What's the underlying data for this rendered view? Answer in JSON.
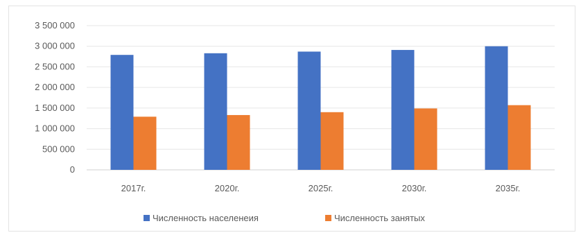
{
  "chart_data": {
    "type": "bar",
    "title": "",
    "xlabel": "",
    "ylabel": "",
    "categories": [
      "2017г.",
      "2020г.",
      "2025г.",
      "2030г.",
      "2035г."
    ],
    "series": [
      {
        "name": "Численность населенеия",
        "color": "#4472c4",
        "values": [
          2790000,
          2830000,
          2870000,
          2910000,
          3000000
        ]
      },
      {
        "name": "Численность занятых",
        "color": "#ed7d31",
        "values": [
          1290000,
          1330000,
          1400000,
          1490000,
          1570000
        ]
      }
    ],
    "yticks": [
      "0",
      "500 000",
      "1 000 000",
      "1 500 000",
      "2 000 000",
      "2 500 000",
      "3 000 000",
      "3 500 000"
    ],
    "ylim": [
      0,
      3500000
    ],
    "grid": true,
    "legend": "bottom"
  }
}
